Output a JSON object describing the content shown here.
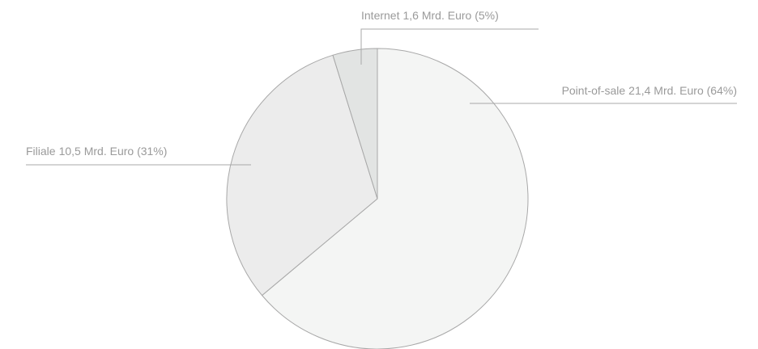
{
  "chart_data": {
    "type": "pie",
    "categories": [
      "Point-of-sale",
      "Filiale",
      "Internet"
    ],
    "values": [
      21.4,
      10.5,
      1.6
    ],
    "value_labels": [
      "21,4 Mrd. Euro (64%)",
      "10,5 Mrd. Euro (31%)",
      "1,6 Mrd. Euro (5%)"
    ],
    "colors": [
      "#f4f5f4",
      "#ececec",
      "#e2e4e3"
    ]
  }
}
